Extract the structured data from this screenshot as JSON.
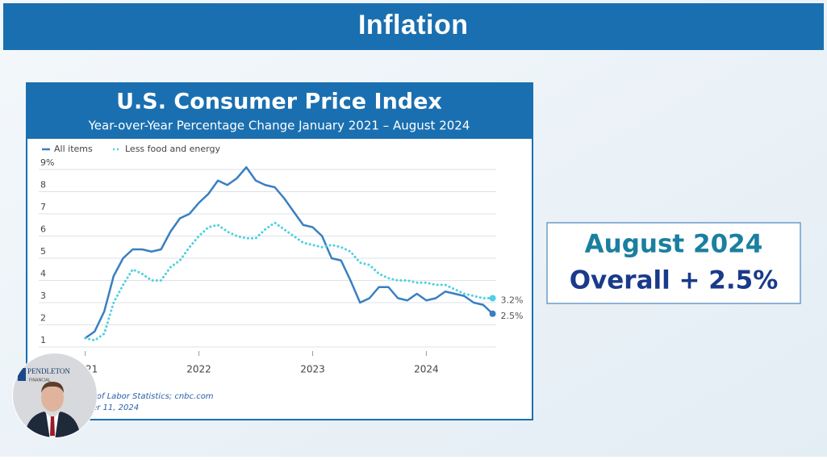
{
  "header": {
    "title": "Inflation"
  },
  "chart_data": {
    "type": "line",
    "title": "U.S. Consumer Price Index",
    "subtitle": "Year-over-Year Percentage Change January 2021 – August 2024",
    "x": [
      2021,
      2021.083,
      2021.167,
      2021.25,
      2021.333,
      2021.417,
      2021.5,
      2021.583,
      2021.667,
      2021.75,
      2021.833,
      2021.917,
      2022,
      2022.083,
      2022.167,
      2022.25,
      2022.333,
      2022.417,
      2022.5,
      2022.583,
      2022.667,
      2022.75,
      2022.833,
      2022.917,
      2023,
      2023.083,
      2023.167,
      2023.25,
      2023.333,
      2023.417,
      2023.5,
      2023.583,
      2023.667,
      2023.75,
      2023.833,
      2023.917,
      2024,
      2024.083,
      2024.167,
      2024.25,
      2024.333,
      2024.417,
      2024.5,
      2024.583
    ],
    "series": [
      {
        "name": "All items",
        "color": "#3a7fc0",
        "style": "solid",
        "values": [
          1.4,
          1.7,
          2.6,
          4.2,
          5.0,
          5.4,
          5.4,
          5.3,
          5.4,
          6.2,
          6.8,
          7.0,
          7.5,
          7.9,
          8.5,
          8.3,
          8.6,
          9.1,
          8.5,
          8.3,
          8.2,
          7.7,
          7.1,
          6.5,
          6.4,
          6.0,
          5.0,
          4.9,
          4.0,
          3.0,
          3.2,
          3.7,
          3.7,
          3.2,
          3.1,
          3.4,
          3.1,
          3.2,
          3.5,
          3.4,
          3.3,
          3.0,
          2.9,
          2.5
        ],
        "last_label": "2.5%"
      },
      {
        "name": "Less food and energy",
        "color": "#4fd0e0",
        "style": "dotted",
        "values": [
          1.4,
          1.3,
          1.6,
          3.0,
          3.8,
          4.5,
          4.3,
          4.0,
          4.0,
          4.6,
          4.9,
          5.5,
          6.0,
          6.4,
          6.5,
          6.2,
          6.0,
          5.9,
          5.9,
          6.3,
          6.6,
          6.3,
          6.0,
          5.7,
          5.6,
          5.5,
          5.6,
          5.5,
          5.3,
          4.8,
          4.7,
          4.3,
          4.1,
          4.0,
          4.0,
          3.9,
          3.9,
          3.8,
          3.8,
          3.6,
          3.4,
          3.3,
          3.2,
          3.2
        ],
        "last_label": "3.2%"
      }
    ],
    "xlim": [
      2020.96,
      2024.65
    ],
    "xticks": [
      {
        "value": 2021,
        "label": "21"
      },
      2022,
      2023,
      2024
    ],
    "ylim": [
      0.8,
      9.2
    ],
    "yticks": [
      1,
      2,
      3,
      4,
      5,
      6,
      7,
      8,
      {
        "value": 9,
        "label": "9%"
      }
    ],
    "grid": true,
    "source": [
      "eau of Labor Statistics; cnbc.com",
      "mber 11, 2024"
    ]
  },
  "callout": {
    "line1": "August 2024",
    "line2": "Overall + 2.5%"
  },
  "logo": {
    "name": "PENDLETON",
    "sub": "FINANCIAL"
  }
}
